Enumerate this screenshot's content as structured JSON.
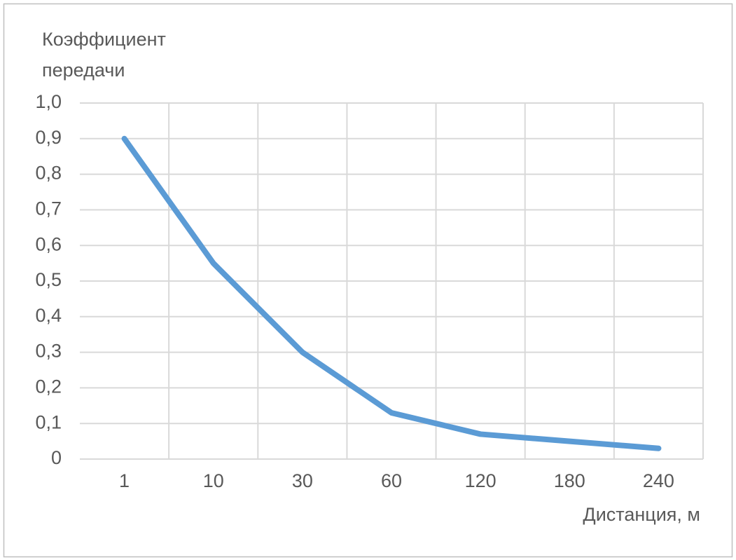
{
  "chart_data": {
    "type": "line",
    "y_label": "Коэффициент передачи",
    "x_label": "Дистанция, м",
    "categories": [
      "1",
      "10",
      "30",
      "60",
      "120",
      "180",
      "240"
    ],
    "series": [
      {
        "name": "Коэффициент передачи",
        "color": "#5b9bd5",
        "values": [
          0.9,
          0.55,
          0.3,
          0.13,
          0.07,
          0.05,
          0.03
        ]
      }
    ],
    "ylim": [
      0,
      1
    ],
    "yticks": [
      0,
      {
        "value": 0.1,
        "label": "0,1"
      },
      {
        "value": 0.2,
        "label": "0,2"
      },
      {
        "value": 0.3,
        "label": "0,3"
      },
      {
        "value": 0.4,
        "label": "0,4"
      },
      {
        "value": 0.5,
        "label": "0,5"
      },
      {
        "value": 0.6,
        "label": "0,6"
      },
      {
        "value": 0.7,
        "label": "0,7"
      },
      {
        "value": 0.8,
        "label": "0,8"
      },
      {
        "value": 0.9,
        "label": "0,9"
      },
      {
        "value": 1.0,
        "label": "1,0"
      }
    ],
    "grid": true
  }
}
